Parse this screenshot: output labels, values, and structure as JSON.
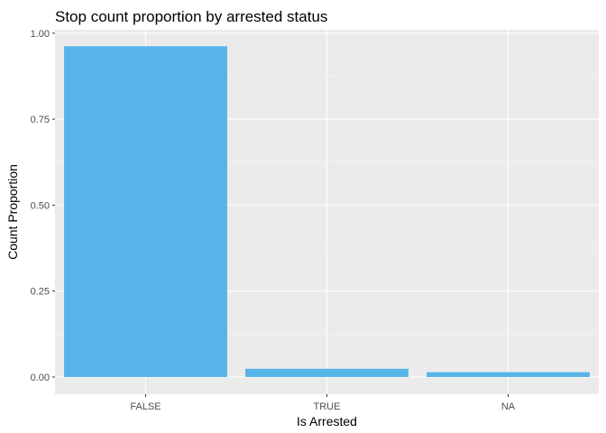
{
  "chart_data": {
    "type": "bar",
    "title": "Stop count proportion by arrested status",
    "xlabel": "Is Arrested",
    "ylabel": "Count Proportion",
    "categories": [
      "FALSE",
      "TRUE",
      "NA"
    ],
    "values": [
      0.962,
      0.024,
      0.014
    ],
    "ylim": [
      -0.05,
      1.01
    ],
    "yticks": [
      0,
      0.25,
      0.5,
      0.75,
      1
    ],
    "ytick_labels": [
      "0.00",
      "0.25",
      "0.50",
      "0.75",
      "1.00"
    ],
    "grid": true,
    "legend": "none",
    "colors": {
      "bar": "#56B4E9",
      "panel": "#EBEBEB",
      "grid_major": "#FFFFFF",
      "grid_minor": "#F5F5F5"
    }
  }
}
